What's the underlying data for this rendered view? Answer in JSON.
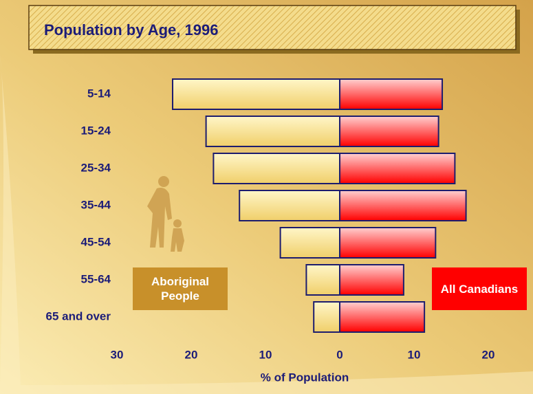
{
  "chart_data": {
    "type": "bar",
    "orientation": "horizontal",
    "title": "Population by Age, 1996",
    "x_label": "% of Population",
    "categories": [
      "5-14",
      "15-24",
      "25-34",
      "35-44",
      "45-54",
      "55-64",
      "65 and over"
    ],
    "series": [
      {
        "name": "Aboriginal People",
        "color": "#c8902a",
        "values": [
          -22.5,
          -18,
          -17,
          -13.5,
          -8,
          -4.5,
          -3.5
        ]
      },
      {
        "name": "All Canadians",
        "color": "#ff0000",
        "values": [
          13.8,
          13.3,
          15.5,
          17,
          12.9,
          8.6,
          11.4
        ]
      }
    ],
    "xlim": [
      -30,
      20
    ],
    "xticks": [
      {
        "value": -30,
        "label": "30"
      },
      {
        "value": -20,
        "label": "20"
      },
      {
        "value": -10,
        "label": "10"
      },
      0,
      10,
      20
    ]
  }
}
